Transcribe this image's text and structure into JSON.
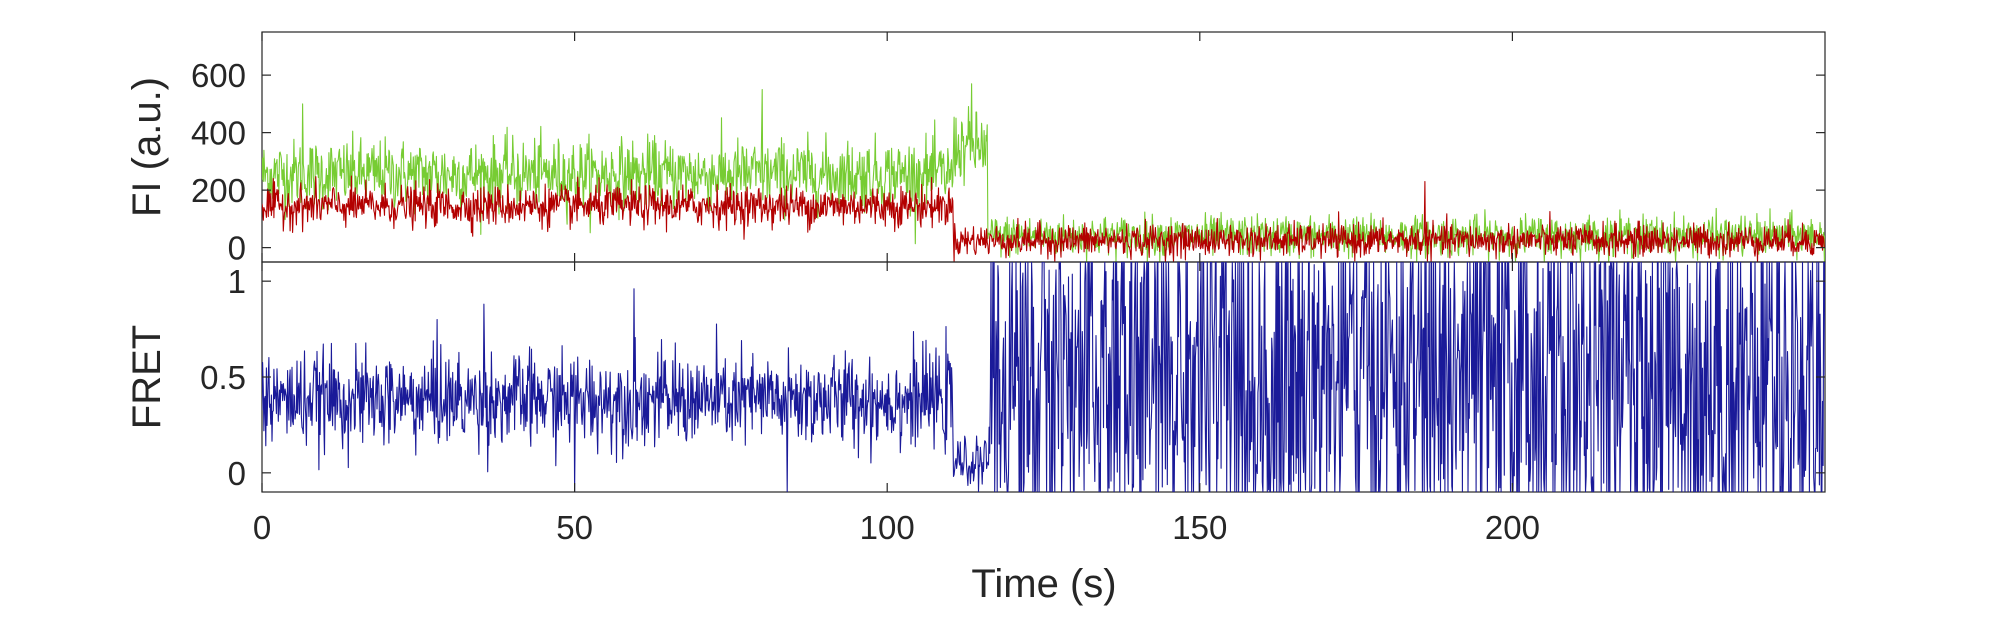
{
  "chart_data": [
    {
      "type": "line",
      "panel": "top",
      "title": "",
      "xlabel": "",
      "ylabel": "FI (a.u.)",
      "xlim": [
        0,
        250
      ],
      "ylim": [
        -50,
        750
      ],
      "x_tick_values": [
        0,
        50,
        100,
        150,
        200
      ],
      "y_tick_values": [
        0,
        200,
        400,
        600
      ],
      "y_tick_labels": [
        "0",
        "200",
        "400",
        "600"
      ],
      "grid": false,
      "sample_interval_s": 0.1,
      "colors": {
        "green": "#77cc33",
        "red": "#b30000"
      },
      "series": [
        {
          "color_key": "green",
          "segments": [
            {
              "x_start": 0,
              "x_end": 110.5,
              "mean": 255,
              "noise": 60
            },
            {
              "x_start": 110.5,
              "x_end": 116,
              "mean": 350,
              "noise": 60
            },
            {
              "x_start": 116,
              "x_end": 250,
              "mean": 40,
              "noise": 35
            }
          ],
          "spikes": [
            {
              "x": 6.5,
              "y": 500
            },
            {
              "x": 80,
              "y": 550
            },
            {
              "x": 113.5,
              "y": 570
            }
          ]
        },
        {
          "color_key": "red",
          "segments": [
            {
              "x_start": 0,
              "x_end": 110.5,
              "mean": 145,
              "noise": 35
            },
            {
              "x_start": 110.5,
              "x_end": 250,
              "mean": 25,
              "noise": 28
            }
          ],
          "spikes": [
            {
              "x": 186,
              "y": 230
            }
          ]
        }
      ]
    },
    {
      "type": "line",
      "panel": "bottom",
      "title": "",
      "xlabel": "Time (s)",
      "ylabel": "FRET",
      "xlim": [
        0,
        250
      ],
      "ylim": [
        -0.1,
        1.1
      ],
      "x_tick_values": [
        0,
        50,
        100,
        150,
        200
      ],
      "x_tick_labels": [
        "0",
        "50",
        "100",
        "150",
        "200"
      ],
      "y_tick_values": [
        0,
        0.5,
        1
      ],
      "y_tick_labels": [
        "0",
        "0.5",
        "1"
      ],
      "grid": false,
      "sample_interval_s": 0.1,
      "colors": {
        "blue": "#1a1a99"
      },
      "series": [
        {
          "color_key": "blue",
          "segments": [
            {
              "x_start": 0,
              "x_end": 110.5,
              "mean": 0.38,
              "noise": 0.12,
              "mode": "normal"
            },
            {
              "x_start": 110.5,
              "x_end": 116,
              "mean": 0.05,
              "noise": 0.06,
              "mode": "normal"
            },
            {
              "x_start": 116,
              "x_end": 250,
              "mean": 0.5,
              "noise": 0.6,
              "mode": "saturating"
            }
          ],
          "spikes": [
            {
              "x": 28,
              "y": 0.8
            },
            {
              "x": 35.5,
              "y": 0.88
            },
            {
              "x": 59.5,
              "y": 0.96
            },
            {
              "x": 50,
              "y": -0.1
            },
            {
              "x": 84,
              "y": -0.1
            }
          ]
        }
      ]
    }
  ]
}
